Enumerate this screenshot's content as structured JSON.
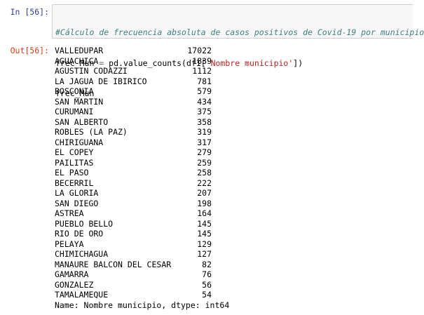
{
  "input_cell": {
    "prompt": "In [56]:",
    "code": {
      "comment": "#Cálculo de frecuencia absoluta de casos positivos de Covid-19 por municipio",
      "line2_var": "frec_Mun",
      "line2_eq": " = ",
      "line2_call": "pd.value_counts(df1[",
      "line2_str": "'Nombre municipio'",
      "line2_close": "])",
      "line3": "frec_Mun"
    }
  },
  "output_cell": {
    "prompt": "Out[56]:",
    "rows": [
      {
        "name": "VALLEDUPAR",
        "count": "17022"
      },
      {
        "name": "AGUACHICA",
        "count": "1839"
      },
      {
        "name": "AGUSTIN CODAZZI",
        "count": "1112"
      },
      {
        "name": "LA JAGUA DE IBIRICO",
        "count": "781"
      },
      {
        "name": "BOSCONIA",
        "count": "579"
      },
      {
        "name": "SAN MARTIN",
        "count": "434"
      },
      {
        "name": "CURUMANI",
        "count": "375"
      },
      {
        "name": "SAN ALBERTO",
        "count": "358"
      },
      {
        "name": "ROBLES (LA PAZ)",
        "count": "319"
      },
      {
        "name": "CHIRIGUANA",
        "count": "317"
      },
      {
        "name": "EL COPEY",
        "count": "279"
      },
      {
        "name": "PAILITAS",
        "count": "259"
      },
      {
        "name": "EL PASO",
        "count": "258"
      },
      {
        "name": "BECERRIL",
        "count": "222"
      },
      {
        "name": "LA GLORIA",
        "count": "207"
      },
      {
        "name": "SAN DIEGO",
        "count": "198"
      },
      {
        "name": "ASTREA",
        "count": "164"
      },
      {
        "name": "PUEBLO BELLO",
        "count": "145"
      },
      {
        "name": "RIO DE ORO",
        "count": "145"
      },
      {
        "name": "PELAYA",
        "count": "129"
      },
      {
        "name": "CHIMICHAGUA",
        "count": "127"
      },
      {
        "name": "MANAURE BALCON DEL CESAR",
        "count": "82"
      },
      {
        "name": "GAMARRA",
        "count": "76"
      },
      {
        "name": "GONZALEZ",
        "count": "56"
      },
      {
        "name": "TAMALAMEQUE",
        "count": "54"
      }
    ],
    "footer": "Name: Nombre municipio, dtype: int64"
  }
}
